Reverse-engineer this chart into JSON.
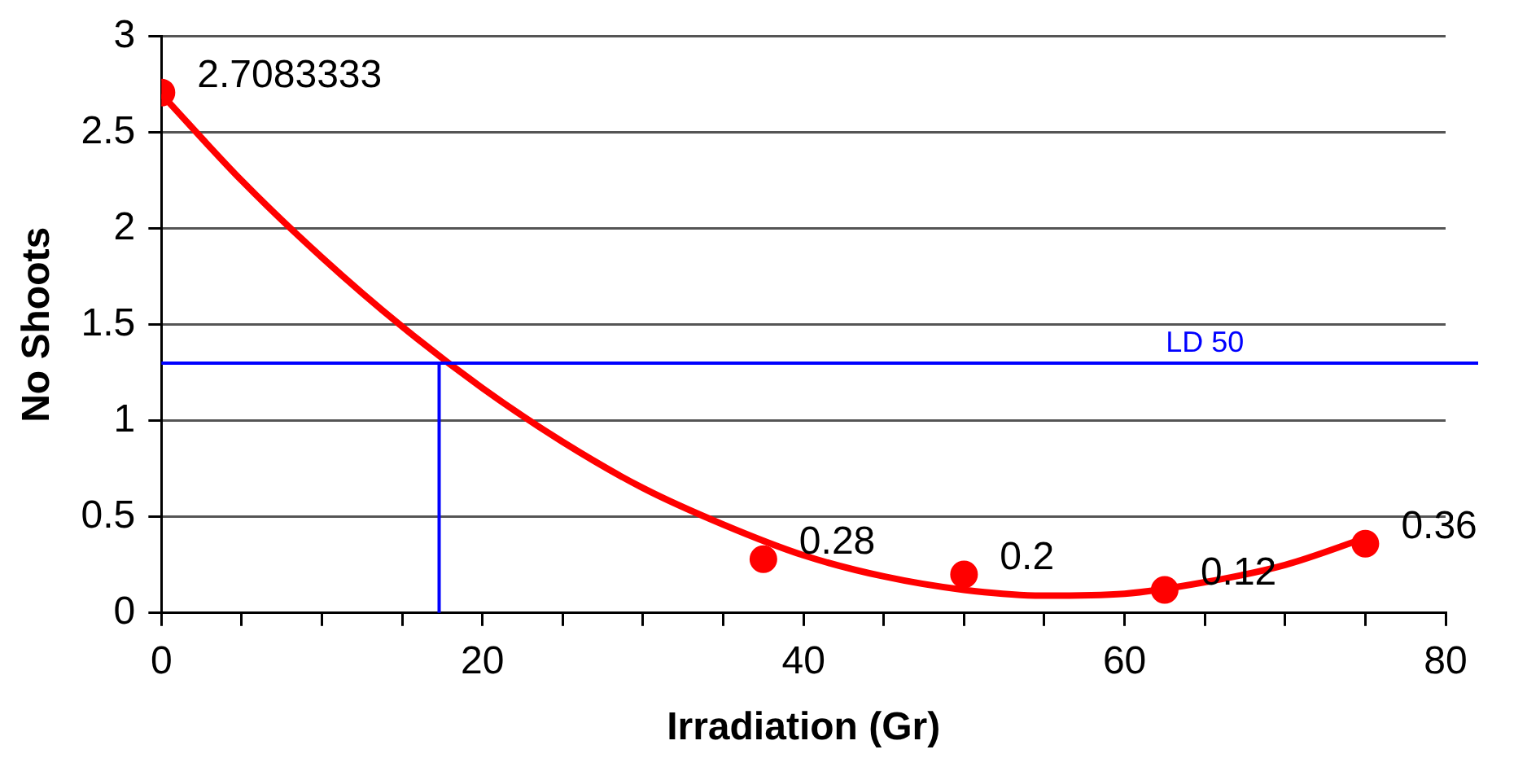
{
  "chart_data": {
    "type": "scatter",
    "xlabel": "Irradiation (Gr)",
    "ylabel": "No Shoots",
    "xlim": [
      0,
      80
    ],
    "ylim": [
      0,
      3
    ],
    "xticks": [
      0,
      {
        "value": 5,
        "label": null
      },
      {
        "value": 10,
        "label": null
      },
      {
        "value": 15,
        "label": null
      },
      20,
      {
        "value": 25,
        "label": null
      },
      {
        "value": 30,
        "label": null
      },
      {
        "value": 35,
        "label": null
      },
      40,
      {
        "value": 45,
        "label": null
      },
      {
        "value": 50,
        "label": null
      },
      {
        "value": 55,
        "label": null
      },
      60,
      {
        "value": 65,
        "label": null
      },
      {
        "value": 70,
        "label": null
      },
      {
        "value": 75,
        "label": null
      },
      80
    ],
    "yticks": [
      0,
      0.5,
      1,
      1.5,
      2,
      2.5,
      3
    ],
    "grid": "y",
    "legend": false,
    "series": [
      {
        "type": "line",
        "color": "#ff0000",
        "marker": "none",
        "x": [
          0,
          5,
          10,
          15,
          20,
          25,
          30,
          35,
          40,
          45,
          50,
          55,
          60,
          65,
          70,
          75
        ],
        "values": [
          2.7,
          2.25,
          1.85,
          1.49,
          1.17,
          0.89,
          0.65,
          0.46,
          0.3,
          0.19,
          0.12,
          0.09,
          0.1,
          0.16,
          0.25,
          0.39
        ]
      },
      {
        "type": "scatter",
        "color": "#ff0000",
        "marker": "circle",
        "x": [
          0,
          37.5,
          50,
          62.5,
          75
        ],
        "values": [
          2.7083333,
          0.28,
          0.2,
          0.12,
          0.36
        ],
        "value_labels": [
          "2.7083333",
          "0.28",
          "0.2",
          "0.12",
          "0.36"
        ]
      },
      {
        "type": "line",
        "color": "#0000ff",
        "marker": "none",
        "x": [
          17.3,
          17.3
        ],
        "values": [
          0,
          1.3
        ]
      }
    ],
    "ref_lines": [
      {
        "axis": "y",
        "value": 1.3,
        "label": "LD 50",
        "color": "#0000ff"
      }
    ]
  }
}
